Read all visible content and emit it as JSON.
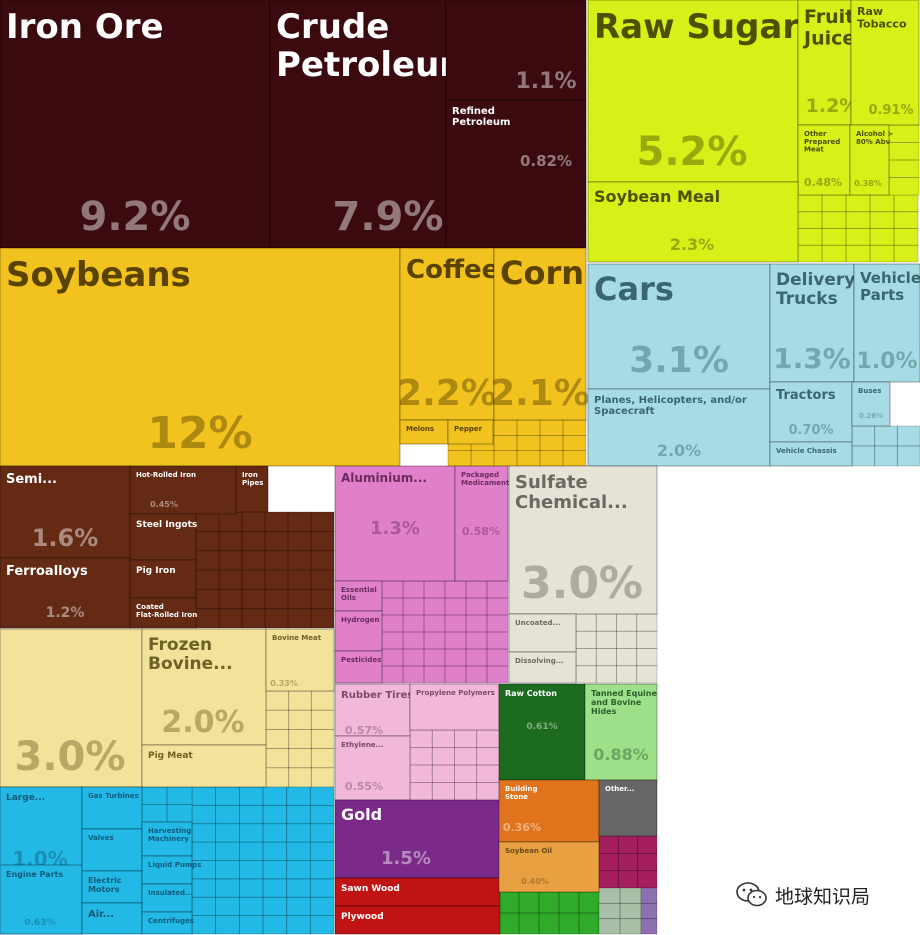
{
  "chart_data": {
    "type": "treemap",
    "unit": "%",
    "cells": [
      {
        "label": "Iron Ore",
        "value": "9.2%",
        "color": "#3b0a0e"
      },
      {
        "label": "Crude Petroleum",
        "value": "7.9%",
        "color": "#3b0a0e"
      },
      {
        "label": "",
        "value": "1.1%",
        "color": "#3b0a0e"
      },
      {
        "label": "Refined Petroleum",
        "value": "0.82%",
        "color": "#3b0a0e"
      },
      {
        "label": "Raw Sugar",
        "value": "5.2%",
        "color": "#d6f018"
      },
      {
        "label": "Fruit Juice",
        "value": "1.2%",
        "color": "#d6f018"
      },
      {
        "label": "Raw Tobacco",
        "value": "0.91%",
        "color": "#d6f018"
      },
      {
        "label": "Other Prepared Meat",
        "value": "0.48%",
        "color": "#d6f018"
      },
      {
        "label": "Alcohol > 80% Abv",
        "value": "0.38%",
        "color": "#d6f018"
      },
      {
        "label": "Soybean Meal",
        "value": "2.3%",
        "color": "#d6f018"
      },
      {
        "label": "Soybeans",
        "value": "12%",
        "color": "#f2c31f"
      },
      {
        "label": "Coffee",
        "value": "2.2%",
        "color": "#f2c31f"
      },
      {
        "label": "Corn",
        "value": "2.1%",
        "color": "#f2c31f"
      },
      {
        "label": "Melons",
        "value": "",
        "color": "#f2c31f"
      },
      {
        "label": "Pepper",
        "value": "",
        "color": "#f2c31f"
      },
      {
        "label": "Cars",
        "value": "3.1%",
        "color": "#a7dce6"
      },
      {
        "label": "Planes, Helicopters, and/or Spacecraft",
        "value": "2.0%",
        "color": "#a7dce6"
      },
      {
        "label": "Delivery Trucks",
        "value": "1.3%",
        "color": "#a7dce6"
      },
      {
        "label": "Vehicle Parts",
        "value": "1.0%",
        "color": "#a7dce6"
      },
      {
        "label": "Tractors",
        "value": "0.70%",
        "color": "#a7dce6"
      },
      {
        "label": "Buses",
        "value": "0.26%",
        "color": "#a7dce6"
      },
      {
        "label": "Vehicle Chassis",
        "value": "",
        "color": "#a7dce6"
      },
      {
        "label": "Semi...",
        "value": "1.6%",
        "color": "#652a14"
      },
      {
        "label": "Ferroalloys",
        "value": "1.2%",
        "color": "#652a14"
      },
      {
        "label": "Hot-Rolled Iron",
        "value": "0.45%",
        "color": "#652a14"
      },
      {
        "label": "Iron Pipes",
        "value": "",
        "color": "#652a14"
      },
      {
        "label": "Steel Ingots",
        "value": "",
        "color": "#652a14"
      },
      {
        "label": "Pig Iron",
        "value": "",
        "color": "#652a14"
      },
      {
        "label": "Coated Flat-Rolled Iron",
        "value": "",
        "color": "#652a14"
      },
      {
        "label": "Aluminium...",
        "value": "1.3%",
        "color": "#e07fca"
      },
      {
        "label": "Packaged Medicaments",
        "value": "0.58%",
        "color": "#e07fca"
      },
      {
        "label": "Essential Oils",
        "value": "",
        "color": "#e07fca"
      },
      {
        "label": "Hydrogen",
        "value": "",
        "color": "#e07fca"
      },
      {
        "label": "Pesticides",
        "value": "",
        "color": "#e07fca"
      },
      {
        "label": "Sulfate Chemical...",
        "value": "3.0%",
        "color": "#e6e2d6"
      },
      {
        "label": "Uncoated...",
        "value": "",
        "color": "#e6e2d6"
      },
      {
        "label": "Dissolving...",
        "value": "",
        "color": "#e6e2d6"
      },
      {
        "label": "",
        "value": "3.0%",
        "color": "#f2e29a"
      },
      {
        "label": "Frozen Bovine...",
        "value": "2.0%",
        "color": "#f2e29a"
      },
      {
        "label": "Bovine Meat",
        "value": "0.33%",
        "color": "#f2e29a"
      },
      {
        "label": "Pig Meat",
        "value": "",
        "color": "#f2e29a"
      },
      {
        "label": "Rubber Tires",
        "value": "0.57%",
        "color": "#f2b8da"
      },
      {
        "label": "Propylene Polymers",
        "value": "",
        "color": "#f2b8da"
      },
      {
        "label": "Ethylene...",
        "value": "0.55%",
        "color": "#f2b8da"
      },
      {
        "label": "Raw Cotton",
        "value": "0.61%",
        "color": "#1d6b1f"
      },
      {
        "label": "Tanned Equine and Bovine Hides",
        "value": "0.88%",
        "color": "#9ee08a"
      },
      {
        "label": "Large...",
        "value": "1.0%",
        "color": "#22b9e6"
      },
      {
        "label": "Engine Parts",
        "value": "0.63%",
        "color": "#22b9e6"
      },
      {
        "label": "Gas Turbines",
        "value": "",
        "color": "#22b9e6"
      },
      {
        "label": "Valves",
        "value": "",
        "color": "#22b9e6"
      },
      {
        "label": "Electric Motors",
        "value": "",
        "color": "#22b9e6"
      },
      {
        "label": "Air...",
        "value": "",
        "color": "#22b9e6"
      },
      {
        "label": "Harvesting Machinery",
        "value": "",
        "color": "#22b9e6"
      },
      {
        "label": "Liquid Pumps",
        "value": "",
        "color": "#22b9e6"
      },
      {
        "label": "Insulated...",
        "value": "",
        "color": "#22b9e6"
      },
      {
        "label": "Centrifuges",
        "value": "",
        "color": "#22b9e6"
      },
      {
        "label": "Gold",
        "value": "1.5%",
        "color": "#7b2a8a"
      },
      {
        "label": "Sawn Wood",
        "value": "",
        "color": "#c01313"
      },
      {
        "label": "Plywood",
        "value": "",
        "color": "#c01313"
      },
      {
        "label": "Building Stone",
        "value": "0.36%",
        "color": "#e0741c"
      },
      {
        "label": "Soybean Oil",
        "value": "0.40%",
        "color": "#e8a040"
      },
      {
        "label": "Other...",
        "value": "",
        "color": "#666666"
      }
    ]
  },
  "watermark": {
    "text": "地球知识局",
    "icon": "wechat-icon"
  }
}
